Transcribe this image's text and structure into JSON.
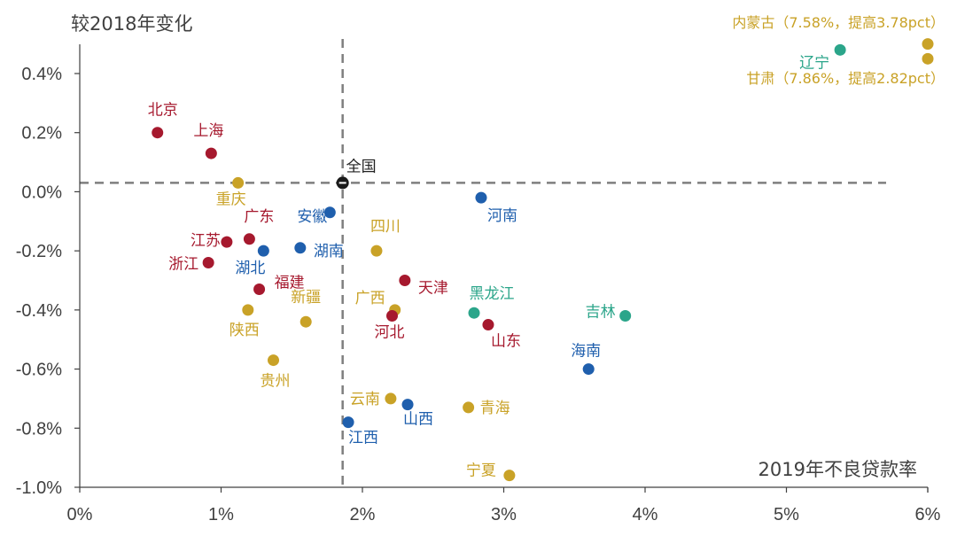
{
  "chart_data": {
    "type": "scatter",
    "ylabel": "较2018年变化",
    "xlabel": "2019年不良贷款率",
    "xlim": [
      0,
      6
    ],
    "ylim": [
      -1.0,
      0.5
    ],
    "x_ticks": [
      "0%",
      "1%",
      "2%",
      "3%",
      "4%",
      "5%",
      "6%"
    ],
    "y_ticks": [
      "0.4%",
      "0.2%",
      "0.0%",
      "-0.2%",
      "-0.4%",
      "-0.6%",
      "-0.8%",
      "-1.0%"
    ],
    "reference_lines": {
      "x": 1.86,
      "y": 0.03
    },
    "colors": {
      "red": "#A6192E",
      "gold": "#C9A227",
      "blue": "#1F5FAD",
      "teal": "#2BA58A",
      "black": "#1a1a1a",
      "axis": "#404040"
    },
    "points": [
      {
        "label": "北京",
        "x": 0.55,
        "y": 0.2,
        "color": "red"
      },
      {
        "label": "上海",
        "x": 0.93,
        "y": 0.13,
        "color": "red"
      },
      {
        "label": "重庆",
        "x": 1.12,
        "y": 0.03,
        "color": "gold"
      },
      {
        "label": "全国",
        "x": 1.86,
        "y": 0.03,
        "color": "black"
      },
      {
        "label": "安徽",
        "x": 1.77,
        "y": -0.07,
        "color": "blue"
      },
      {
        "label": "广东",
        "x": 1.2,
        "y": -0.16,
        "color": "red"
      },
      {
        "label": "江苏",
        "x": 1.04,
        "y": -0.17,
        "color": "red"
      },
      {
        "label": "浙江",
        "x": 0.91,
        "y": -0.24,
        "color": "red"
      },
      {
        "label": "湖北",
        "x": 1.3,
        "y": -0.2,
        "color": "blue"
      },
      {
        "label": "湖南",
        "x": 1.56,
        "y": -0.19,
        "color": "blue"
      },
      {
        "label": "四川",
        "x": 2.1,
        "y": -0.2,
        "color": "gold"
      },
      {
        "label": "河南",
        "x": 2.84,
        "y": -0.02,
        "color": "blue"
      },
      {
        "label": "福建",
        "x": 1.27,
        "y": -0.33,
        "color": "red"
      },
      {
        "label": "新疆",
        "x": 1.6,
        "y": -0.44,
        "color": "gold"
      },
      {
        "label": "陕西",
        "x": 1.19,
        "y": -0.4,
        "color": "gold"
      },
      {
        "label": "天津",
        "x": 2.3,
        "y": -0.3,
        "color": "red"
      },
      {
        "label": "广西",
        "x": 2.23,
        "y": -0.4,
        "color": "gold"
      },
      {
        "label": "河北",
        "x": 2.21,
        "y": -0.42,
        "color": "red"
      },
      {
        "label": "黑龙江",
        "x": 2.79,
        "y": -0.41,
        "color": "teal"
      },
      {
        "label": "山东",
        "x": 2.89,
        "y": -0.45,
        "color": "red"
      },
      {
        "label": "吉林",
        "x": 3.86,
        "y": -0.42,
        "color": "teal"
      },
      {
        "label": "海南",
        "x": 3.6,
        "y": -0.6,
        "color": "blue"
      },
      {
        "label": "贵州",
        "x": 1.37,
        "y": -0.57,
        "color": "gold"
      },
      {
        "label": "云南",
        "x": 2.2,
        "y": -0.7,
        "color": "gold"
      },
      {
        "label": "山西",
        "x": 2.32,
        "y": -0.72,
        "color": "blue"
      },
      {
        "label": "青海",
        "x": 2.75,
        "y": -0.73,
        "color": "gold"
      },
      {
        "label": "江西",
        "x": 1.9,
        "y": -0.78,
        "color": "blue"
      },
      {
        "label": "宁夏",
        "x": 3.04,
        "y": -0.96,
        "color": "gold"
      },
      {
        "label": "辽宁",
        "x": 5.38,
        "y": 0.48,
        "color": "teal"
      },
      {
        "label": "",
        "x": 6.0,
        "y": 0.5,
        "color": "gold"
      },
      {
        "label": "",
        "x": 6.0,
        "y": 0.45,
        "color": "gold"
      }
    ],
    "annotations": [
      {
        "text": "内蒙古（7.58%，提高3.78pct）",
        "color": "gold"
      },
      {
        "text": "甘肃（7.86%，提高2.82pct）",
        "color": "gold"
      }
    ]
  }
}
